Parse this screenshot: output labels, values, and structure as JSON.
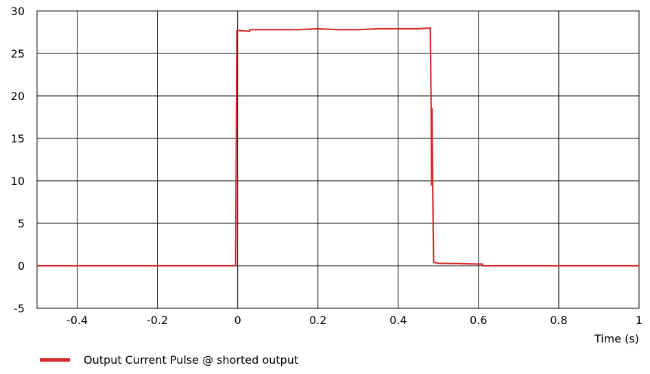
{
  "chart_data": {
    "type": "line",
    "title": "",
    "xlabel": "Time  (s)",
    "ylabel": "",
    "xlim": [
      -0.5,
      1.0
    ],
    "ylim": [
      -5,
      30
    ],
    "xticks": [
      -0.4,
      -0.2,
      0,
      0.2,
      0.4,
      0.6,
      0.8,
      1
    ],
    "xtick_labels": [
      "-0.4",
      "-0.2",
      "0",
      "0.2",
      "0.4",
      "0.6",
      "0.8",
      "1"
    ],
    "yticks": [
      -5,
      0,
      5,
      10,
      15,
      20,
      25,
      30
    ],
    "ytick_labels": [
      "-5",
      "0",
      "5",
      "10",
      "15",
      "20",
      "25",
      "30"
    ],
    "grid": true,
    "legend_position": "bottom-left",
    "series": [
      {
        "name": "Output Current Pulse @ shorted output",
        "color": "#d42a2a",
        "x": [
          -0.5,
          -0.005,
          -0.002,
          0.0,
          0.03,
          0.03,
          0.05,
          0.1,
          0.15,
          0.2,
          0.25,
          0.3,
          0.35,
          0.4,
          0.45,
          0.48,
          0.48,
          0.482,
          0.483,
          0.484,
          0.486,
          0.488,
          0.488,
          0.5,
          0.55,
          0.6,
          0.61,
          0.61,
          0.62,
          1.0
        ],
        "y": [
          0,
          0,
          27.7,
          27.7,
          27.6,
          27.8,
          27.8,
          27.8,
          27.8,
          27.9,
          27.8,
          27.8,
          27.9,
          27.9,
          27.9,
          28.0,
          27.8,
          18.5,
          9.5,
          18.5,
          9.5,
          1.0,
          0.4,
          0.3,
          0.25,
          0.2,
          0.2,
          0.0,
          0.0,
          0.0
        ]
      }
    ]
  }
}
